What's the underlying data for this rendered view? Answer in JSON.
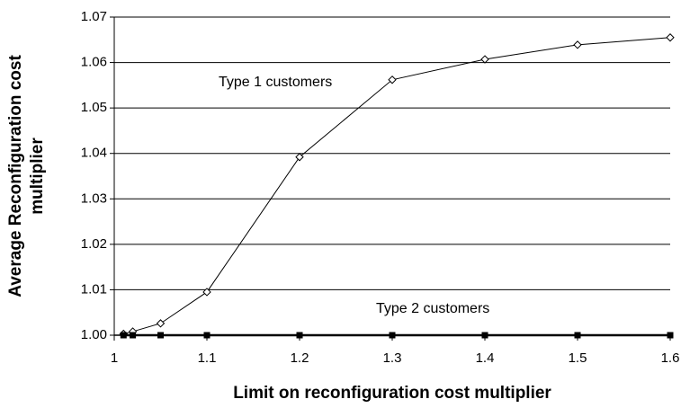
{
  "chart_data": {
    "type": "line",
    "x_label": "Limit on reconfiguration cost multiplier",
    "y_label": [
      "Average Reconfiguration cost",
      "multiplier"
    ],
    "x": [
      1.01,
      1.02,
      1.05,
      1.1,
      1.2,
      1.3,
      1.4,
      1.5,
      1.6
    ],
    "series": [
      {
        "name": "Type 1 customers",
        "color": "#000000",
        "marker": "open-diamond",
        "values": [
          1.0003,
          1.0008,
          1.0026,
          1.0095,
          1.0392,
          1.0562,
          1.0607,
          1.0639,
          1.0655
        ]
      },
      {
        "name": "Type 2 customers",
        "color": "#000000",
        "marker": "filled-square",
        "values": [
          1.0,
          1.0,
          1.0,
          1.0,
          1.0,
          1.0,
          1.0,
          1.0,
          1.0
        ]
      }
    ],
    "xlim": [
      1,
      1.6
    ],
    "xticks": [
      1,
      1.1,
      1.2,
      1.3,
      1.4,
      1.5,
      1.6
    ],
    "ylim": [
      1.0,
      1.07
    ],
    "yticks": [
      {
        "value": 1.0,
        "label": "1.00"
      },
      {
        "value": 1.01,
        "label": "1.01"
      },
      {
        "value": 1.02,
        "label": "1.02"
      },
      {
        "value": 1.03,
        "label": "1.03"
      },
      {
        "value": 1.04,
        "label": "1.04"
      },
      {
        "value": 1.05,
        "label": "1.05"
      },
      {
        "value": 1.06,
        "label": "1.06"
      },
      {
        "value": 1.07,
        "label": "1.07"
      }
    ],
    "grid": true
  }
}
